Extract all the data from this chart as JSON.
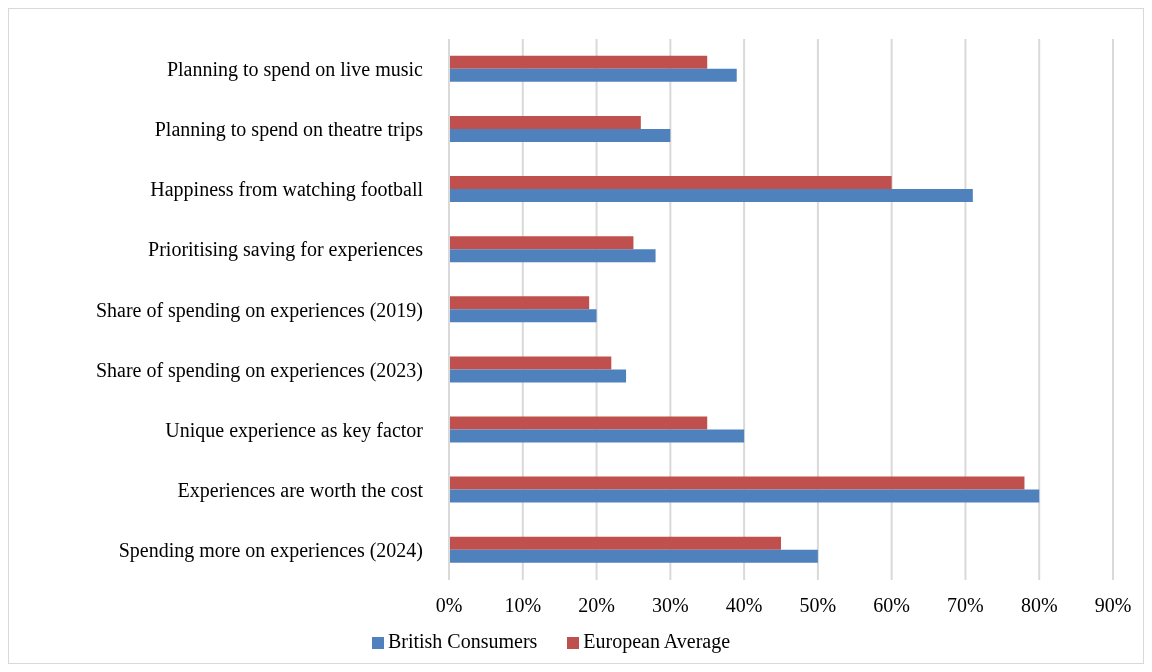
{
  "chart_data": {
    "type": "bar",
    "orientation": "horizontal",
    "categories": [
      "Planning to spend on live music",
      "Planning to spend on theatre trips",
      "Happiness from watching football",
      "Prioritising saving for experiences",
      "Share of spending on experiences (2019)",
      "Share of spending on experiences (2023)",
      "Unique experience as key factor",
      "Experiences are worth the cost",
      "Spending more on experiences (2024)"
    ],
    "series": [
      {
        "name": "European Average",
        "color": "#c0504d",
        "values": [
          35,
          26,
          60,
          25,
          19,
          22,
          35,
          78,
          45
        ]
      },
      {
        "name": "British Consumers",
        "color": "#4f81bd",
        "values": [
          39,
          30,
          71,
          28,
          20,
          24,
          40,
          80,
          50
        ]
      }
    ],
    "xlim": [
      0,
      90
    ],
    "xticks": [
      {
        "value": 0,
        "label": "0%"
      },
      {
        "value": 10,
        "label": "10%"
      },
      {
        "value": 20,
        "label": "20%"
      },
      {
        "value": 30,
        "label": "30%"
      },
      {
        "value": 40,
        "label": "40%"
      },
      {
        "value": 50,
        "label": "50%"
      },
      {
        "value": 60,
        "label": "60%"
      },
      {
        "value": 70,
        "label": "70%"
      },
      {
        "value": 80,
        "label": "80%"
      },
      {
        "value": 90,
        "label": "90%"
      }
    ],
    "grid": "x",
    "legend": "bottom"
  }
}
